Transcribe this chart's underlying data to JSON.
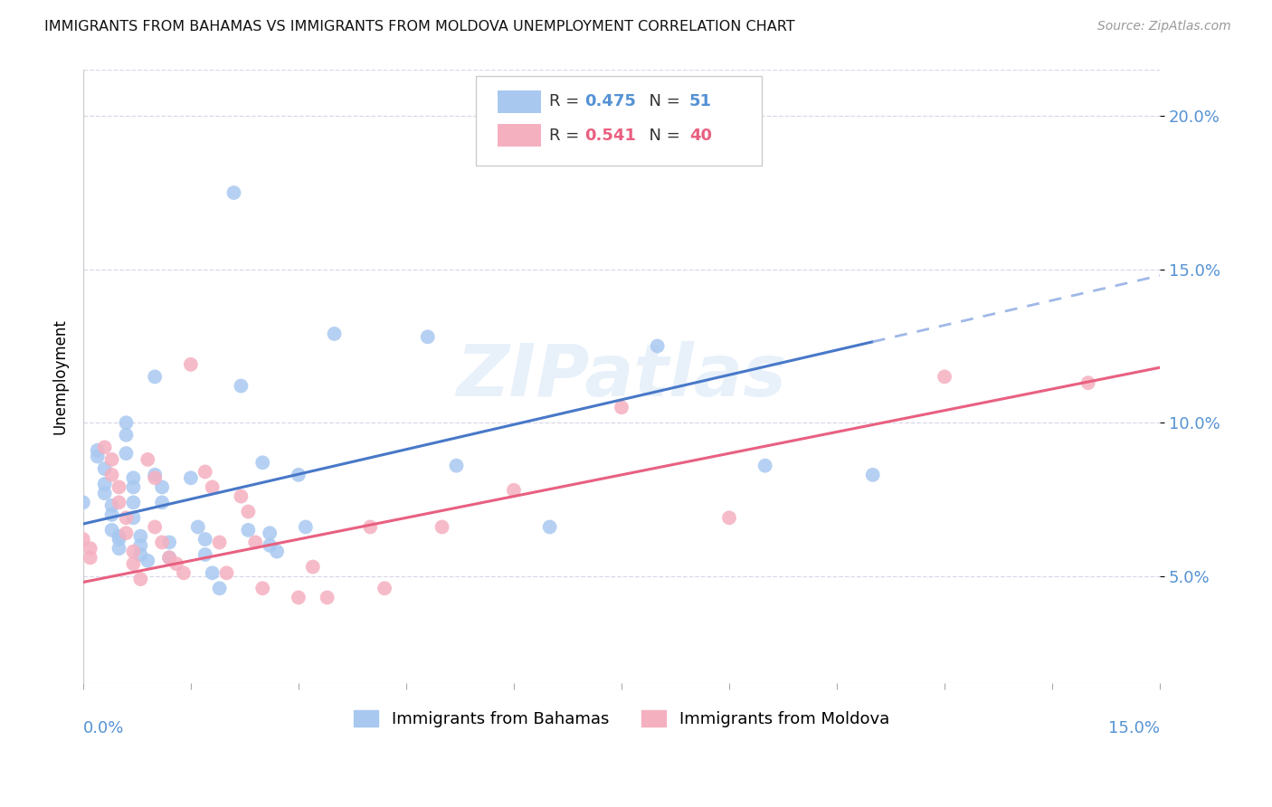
{
  "title": "IMMIGRANTS FROM BAHAMAS VS IMMIGRANTS FROM MOLDOVA UNEMPLOYMENT CORRELATION CHART",
  "source": "Source: ZipAtlas.com",
  "ylabel": "Unemployment",
  "ytick_labels": [
    "5.0%",
    "10.0%",
    "15.0%",
    "20.0%"
  ],
  "ytick_values": [
    0.05,
    0.1,
    0.15,
    0.2
  ],
  "xlim": [
    0.0,
    0.15
  ],
  "ylim": [
    0.015,
    0.215
  ],
  "bahamas_color": "#a8c8f0",
  "moldova_color": "#f5b0c0",
  "trendline_bahamas_solid_color": "#4878c8",
  "trendline_bahamas_dash_color": "#a0b8e8",
  "trendline_moldova_color": "#e86080",
  "watermark": "ZIPatlas",
  "background_color": "#ffffff",
  "grid_color": "#d8d8e8",
  "r_bahamas": "0.475",
  "n_bahamas": "51",
  "r_moldova": "0.541",
  "n_moldova": "40",
  "bahamas_scatter": [
    [
      0.0,
      0.074
    ],
    [
      0.002,
      0.089
    ],
    [
      0.002,
      0.091
    ],
    [
      0.003,
      0.085
    ],
    [
      0.003,
      0.08
    ],
    [
      0.003,
      0.077
    ],
    [
      0.004,
      0.073
    ],
    [
      0.004,
      0.07
    ],
    [
      0.004,
      0.065
    ],
    [
      0.005,
      0.063
    ],
    [
      0.005,
      0.062
    ],
    [
      0.005,
      0.059
    ],
    [
      0.006,
      0.1
    ],
    [
      0.006,
      0.096
    ],
    [
      0.006,
      0.09
    ],
    [
      0.007,
      0.082
    ],
    [
      0.007,
      0.079
    ],
    [
      0.007,
      0.074
    ],
    [
      0.007,
      0.069
    ],
    [
      0.008,
      0.063
    ],
    [
      0.008,
      0.06
    ],
    [
      0.008,
      0.057
    ],
    [
      0.009,
      0.055
    ],
    [
      0.01,
      0.115
    ],
    [
      0.01,
      0.083
    ],
    [
      0.011,
      0.079
    ],
    [
      0.011,
      0.074
    ],
    [
      0.012,
      0.061
    ],
    [
      0.012,
      0.056
    ],
    [
      0.015,
      0.082
    ],
    [
      0.016,
      0.066
    ],
    [
      0.017,
      0.062
    ],
    [
      0.017,
      0.057
    ],
    [
      0.018,
      0.051
    ],
    [
      0.019,
      0.046
    ],
    [
      0.021,
      0.175
    ],
    [
      0.022,
      0.112
    ],
    [
      0.023,
      0.065
    ],
    [
      0.025,
      0.087
    ],
    [
      0.026,
      0.064
    ],
    [
      0.026,
      0.06
    ],
    [
      0.027,
      0.058
    ],
    [
      0.03,
      0.083
    ],
    [
      0.031,
      0.066
    ],
    [
      0.035,
      0.129
    ],
    [
      0.048,
      0.128
    ],
    [
      0.052,
      0.086
    ],
    [
      0.065,
      0.066
    ],
    [
      0.08,
      0.125
    ],
    [
      0.095,
      0.086
    ],
    [
      0.11,
      0.083
    ]
  ],
  "moldova_scatter": [
    [
      0.0,
      0.062
    ],
    [
      0.001,
      0.059
    ],
    [
      0.001,
      0.056
    ],
    [
      0.003,
      0.092
    ],
    [
      0.004,
      0.088
    ],
    [
      0.004,
      0.083
    ],
    [
      0.005,
      0.079
    ],
    [
      0.005,
      0.074
    ],
    [
      0.006,
      0.069
    ],
    [
      0.006,
      0.064
    ],
    [
      0.007,
      0.058
    ],
    [
      0.007,
      0.054
    ],
    [
      0.008,
      0.049
    ],
    [
      0.009,
      0.088
    ],
    [
      0.01,
      0.082
    ],
    [
      0.01,
      0.066
    ],
    [
      0.011,
      0.061
    ],
    [
      0.012,
      0.056
    ],
    [
      0.013,
      0.054
    ],
    [
      0.014,
      0.051
    ],
    [
      0.015,
      0.119
    ],
    [
      0.017,
      0.084
    ],
    [
      0.018,
      0.079
    ],
    [
      0.019,
      0.061
    ],
    [
      0.02,
      0.051
    ],
    [
      0.022,
      0.076
    ],
    [
      0.023,
      0.071
    ],
    [
      0.024,
      0.061
    ],
    [
      0.025,
      0.046
    ],
    [
      0.03,
      0.043
    ],
    [
      0.032,
      0.053
    ],
    [
      0.034,
      0.043
    ],
    [
      0.04,
      0.066
    ],
    [
      0.042,
      0.046
    ],
    [
      0.05,
      0.066
    ],
    [
      0.06,
      0.078
    ],
    [
      0.075,
      0.105
    ],
    [
      0.09,
      0.069
    ],
    [
      0.12,
      0.115
    ],
    [
      0.14,
      0.113
    ]
  ],
  "trend_bahamas_x0": 0.0,
  "trend_bahamas_y0": 0.067,
  "trend_bahamas_x1": 0.15,
  "trend_bahamas_y1": 0.148,
  "trend_bahamas_solid_end": 0.11,
  "trend_moldova_x0": 0.0,
  "trend_moldova_y0": 0.048,
  "trend_moldova_x1": 0.15,
  "trend_moldova_y1": 0.118
}
